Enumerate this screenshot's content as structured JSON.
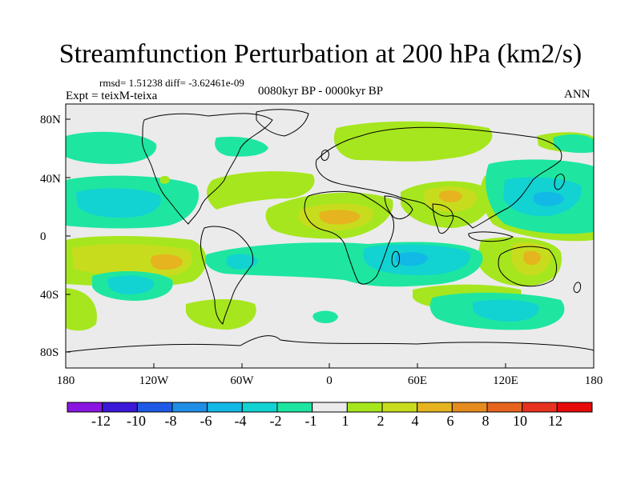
{
  "title": "Streamfunction Perturbation at 200 hPa (km2/s)",
  "stats": "rmsd= 1.51238 diff= -3.62461e-09",
  "experiment": "Expt = teixM-teixa",
  "period": "0080kyr BP - 0000kyr BP",
  "season": "ANN",
  "lat_ticks": [
    "80N",
    "40N",
    "0",
    "40S",
    "80S"
  ],
  "lon_ticks": [
    "180",
    "120W",
    "60W",
    "0",
    "60E",
    "120E",
    "180"
  ],
  "colorbar": {
    "labels": [
      "-12",
      "-10",
      "-8",
      "-6",
      "-4",
      "-2",
      "-1",
      "1",
      "2",
      "4",
      "6",
      "8",
      "10",
      "12"
    ],
    "colors": [
      "#8a14e0",
      "#3c18d8",
      "#1e5ae6",
      "#1e8ee6",
      "#12b8e6",
      "#12d2d2",
      "#1ee6a0",
      "#ebebeb",
      "#a6e61e",
      "#c8dc1e",
      "#e6b41e",
      "#e68c1e",
      "#e6641e",
      "#e6321e",
      "#e60a0a"
    ]
  }
}
